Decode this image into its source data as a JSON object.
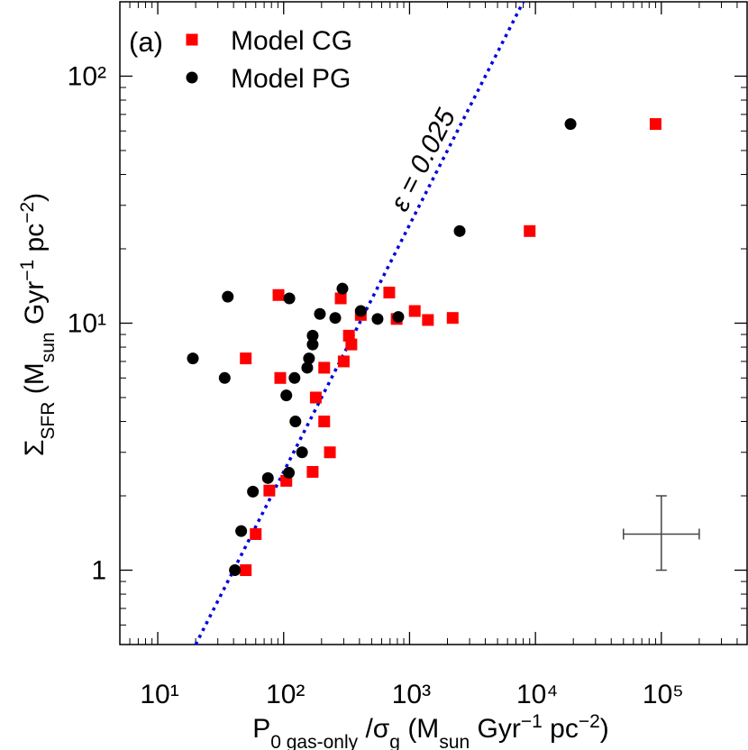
{
  "chart_data": {
    "type": "scatter",
    "annotations": [
      "(a)",
      "ε = 0.025"
    ],
    "xlabel": [
      {
        "text": "P",
        "style": "normal"
      },
      {
        "text": "0 gas-only",
        "style": "sub"
      },
      {
        "text": " /σ",
        "style": "normal"
      },
      {
        "text": "g",
        "style": "sub"
      },
      {
        "text": " (M",
        "style": "normal"
      },
      {
        "text": "sun",
        "style": "sub"
      },
      {
        "text": " Gyr",
        "style": "normal"
      },
      {
        "text": "−1",
        "style": "super"
      },
      {
        "text": " pc",
        "style": "normal"
      },
      {
        "text": "−2",
        "style": "super"
      },
      {
        "text": ")",
        "style": "normal"
      }
    ],
    "ylabel": [
      {
        "text": "Σ",
        "style": "normal"
      },
      {
        "text": "SFR",
        "style": "sub"
      },
      {
        "text": " (M",
        "style": "normal"
      },
      {
        "text": "sun",
        "style": "sub"
      },
      {
        "text": " Gyr",
        "style": "normal"
      },
      {
        "text": "−1",
        "style": "super"
      },
      {
        "text": " pc",
        "style": "normal"
      },
      {
        "text": "−2",
        "style": "super"
      },
      {
        "text": ")",
        "style": "normal"
      }
    ],
    "log_x": true,
    "log_y": true,
    "grid": false,
    "legend": "upper left",
    "xlim": [
      5,
      480000
    ],
    "ylim": [
      0.5,
      200
    ],
    "xticks": [
      {
        "value": 10,
        "label": "10¹"
      },
      {
        "value": 100,
        "label": "10²"
      },
      {
        "value": 1000,
        "label": "10³"
      },
      {
        "value": 10000,
        "label": "10⁴"
      },
      {
        "value": 100000,
        "label": "10⁵"
      }
    ],
    "xminorticks": [
      5,
      6,
      7,
      8,
      9,
      20,
      30,
      40,
      50,
      60,
      70,
      80,
      90,
      200,
      300,
      400,
      500,
      600,
      700,
      800,
      900,
      2000,
      3000,
      4000,
      5000,
      6000,
      7000,
      8000,
      9000,
      20000,
      30000,
      40000,
      50000,
      60000,
      70000,
      80000,
      90000,
      200000,
      300000,
      400000
    ],
    "yticks": [
      1,
      {
        "value": 10,
        "label": "10¹"
      },
      {
        "value": 100,
        "label": "10²"
      }
    ],
    "yminorticks": [
      0.6,
      0.7,
      0.8,
      0.9,
      2,
      3,
      4,
      5,
      6,
      7,
      8,
      9,
      20,
      30,
      40,
      50,
      60,
      70,
      80,
      90,
      200
    ],
    "series": [
      {
        "name": "Model CG",
        "color": "#ff0000",
        "marker": "square",
        "x": [
          50,
          60,
          77,
          105,
          170,
          233,
          210,
          180,
          210,
          94,
          300,
          330,
          345,
          91,
          284,
          410,
          690,
          790,
          1100,
          1400,
          2200,
          9000,
          90000,
          50
        ],
        "values": [
          1.0,
          1.4,
          2.1,
          2.3,
          2.5,
          3.0,
          4.0,
          5.0,
          6.6,
          6.0,
          7.0,
          8.9,
          8.2,
          13,
          12.6,
          10.8,
          13.3,
          10.4,
          11.2,
          10.3,
          10.5,
          23.6,
          64,
          7.2
        ]
      },
      {
        "name": "Model PG",
        "color": "#000000",
        "marker": "circle",
        "x": [
          41,
          46,
          57,
          75,
          110,
          105,
          124,
          140,
          154,
          122,
          159,
          170,
          170,
          194,
          257,
          36,
          111,
          293,
          410,
          557,
          814,
          2500,
          19000,
          19,
          34
        ],
        "values": [
          1.0,
          1.44,
          2.08,
          2.36,
          2.48,
          5.1,
          4.0,
          3.0,
          6.6,
          6.0,
          7.2,
          8.2,
          8.9,
          10.9,
          10.5,
          12.8,
          12.6,
          13.8,
          11.2,
          10.4,
          10.6,
          23.6,
          64,
          7.2,
          6.0
        ]
      }
    ],
    "reference_line": {
      "x": [
        20,
        8000
      ],
      "values": [
        0.5,
        200
      ],
      "color": "#0000dd"
    },
    "error_cross": {
      "x": 100000,
      "y": 1.4,
      "xerr": [
        50000,
        200000
      ],
      "yerr": [
        1,
        2
      ],
      "color": "#444444"
    }
  }
}
